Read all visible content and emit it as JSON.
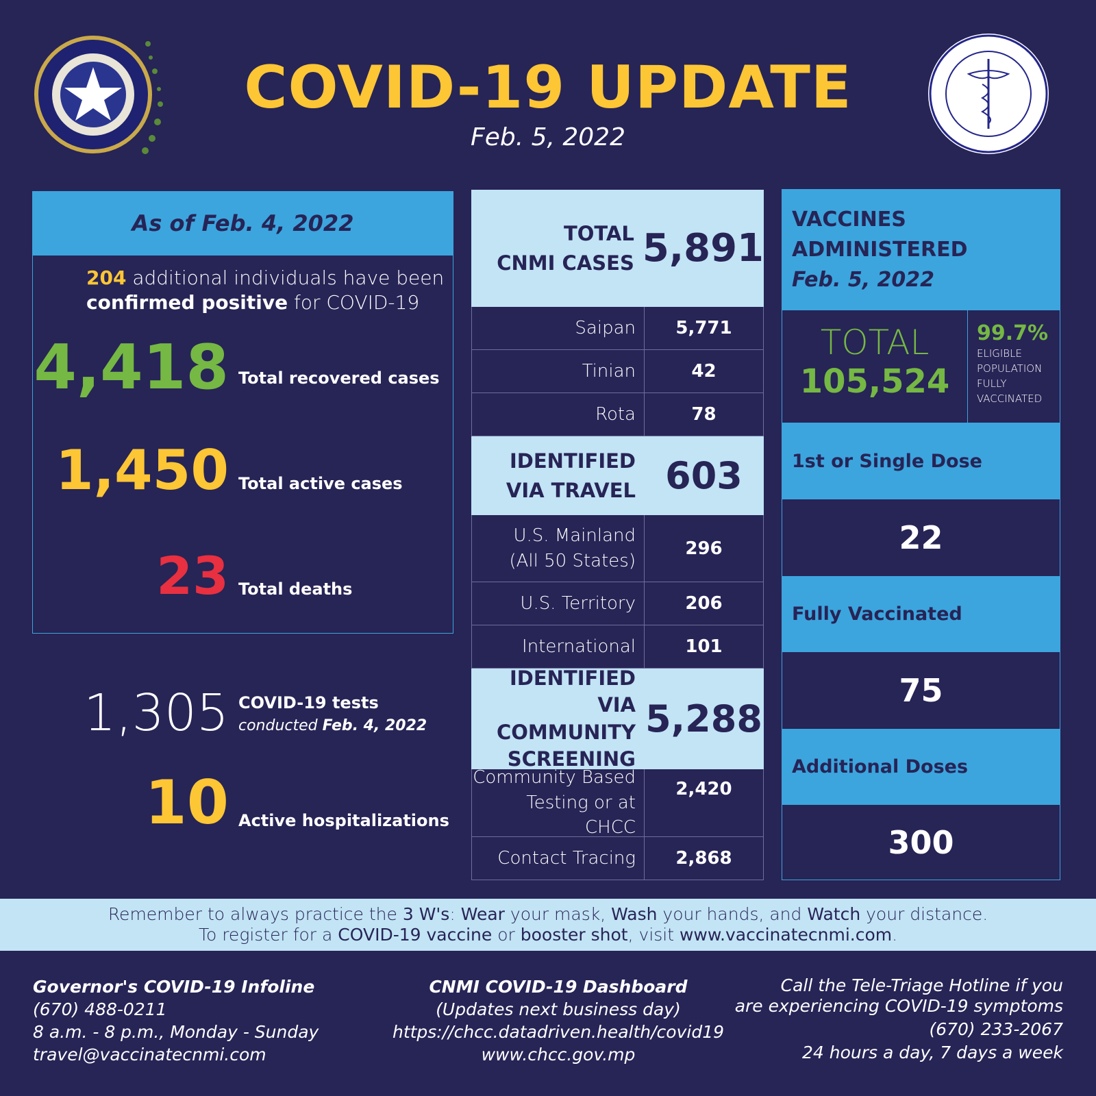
{
  "header": {
    "title": "COVID-19 UPDATE",
    "date": "Feb. 5, 2022",
    "left_logo": "CNMI Official Seal - Commonwealth of the Northern Mariana Islands",
    "right_logo": "Commonwealth Healthcare Corp. Established October 2011 Commonwealth of the Northern Marianas"
  },
  "summary": {
    "as_of": "As of Feb. 4, 2022",
    "additional_count": "204",
    "additional_text1": " additional individuals have been",
    "confirmed": "confirmed positive",
    "additional_text2": " for COVID-19",
    "recovered": "4,418",
    "recovered_label": "Total recovered cases",
    "active": "1,450",
    "active_label": "Total active cases",
    "deaths": "23",
    "deaths_label": "Total deaths",
    "tests": "1,305",
    "tests_label": "COVID-19 tests",
    "tests_sub": "conducted ",
    "tests_date": "Feb. 4, 2022",
    "hosp": "10",
    "hosp_label": "Active hospitalizations"
  },
  "cases": {
    "total_label1": "TOTAL",
    "total_label2": "CNMI CASES",
    "total": "5,891",
    "islands": [
      {
        "label": "Saipan",
        "value": "5,771"
      },
      {
        "label": "Tinian",
        "value": "42"
      },
      {
        "label": "Rota",
        "value": "78"
      }
    ],
    "travel_label1": "IDENTIFIED",
    "travel_label2": "VIA TRAVEL",
    "travel": "603",
    "travel_rows": [
      {
        "label": "U.S. Mainland",
        "label2": "(All 50 States)",
        "value": "296"
      },
      {
        "label": "U.S. Territory",
        "value": "206"
      },
      {
        "label": "International",
        "value": "101"
      }
    ],
    "community_label1": "IDENTIFIED VIA",
    "community_label2": "COMMUNITY",
    "community_label3": "SCREENING",
    "community": "5,288",
    "community_rows": [
      {
        "label": "Community Based",
        "label2": "Testing or at CHCC",
        "value": "2,420"
      },
      {
        "label": "Contact Tracing",
        "value": "2,868"
      }
    ]
  },
  "vaccines": {
    "title1": "VACCINES",
    "title2": "ADMINISTERED",
    "date": "Feb. 5, 2022",
    "total_label": "TOTAL",
    "total": "105,524",
    "pct": "99.7%",
    "pct_l1": "ELIGIBLE",
    "pct_l2": "POPULATION",
    "pct_l3": "FULLY",
    "pct_l4": "VACCINATED",
    "doses": [
      {
        "label": "1st or Single Dose",
        "value": "22"
      },
      {
        "label": "Fully Vaccinated",
        "value": "75"
      },
      {
        "label": "Additional Doses",
        "value": "300"
      }
    ]
  },
  "banner": {
    "l1a": "Remember to always practice the ",
    "l1b": "3 W's",
    "l1c": ": ",
    "l1d": "Wear",
    "l1e": " your mask, ",
    "l1f": "Wash",
    "l1g": " your hands, and ",
    "l1h": "Watch",
    "l1i": " your distance.",
    "l2a": "To register for a ",
    "l2b": "COVID-19 vaccine",
    "l2c": " or ",
    "l2d": "booster shot",
    "l2e": ", visit ",
    "l2f": "www.vaccinatecnmi.com",
    "l2g": "."
  },
  "footer": {
    "infoline_title": "Governor's COVID-19 Infoline",
    "infoline_phone": "(670) 488-0211",
    "infoline_hours": "8 a.m. - 8 p.m., Monday - Sunday",
    "infoline_email": "travel@vaccinatecnmi.com",
    "dash_title": "CNMI COVID-19 Dashboard",
    "dash_sub": "(Updates next business day)",
    "dash_url": "https://chcc.datadriven.health/covid19",
    "dash_url2": "www.chcc.gov.mp",
    "tri_a": "Call the ",
    "tri_b": "Tele-Triage Hotline",
    "tri_c": " if you",
    "tri_l2": "are experiencing COVID-19 symptoms",
    "tri_phone": "(670) 233-2067",
    "tri_hours": "24 hours a day, 7 days a week"
  },
  "colors": {
    "background": "#272456",
    "yellow": "#fcc635",
    "green": "#75b844",
    "red": "#e83040",
    "blue": "#3ca5de",
    "pale_blue": "#c2e4f5"
  }
}
